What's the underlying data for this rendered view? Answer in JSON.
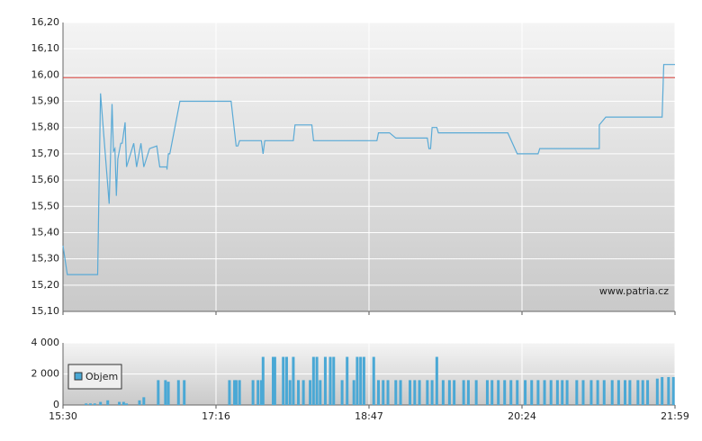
{
  "chart_data": [
    {
      "type": "line",
      "color": "#5aaad6",
      "grid": true,
      "ylim": [
        15.1,
        16.2
      ],
      "yticks": [
        {
          "value": 15.1,
          "label": "15,10"
        },
        {
          "value": 15.2,
          "label": "15,20"
        },
        {
          "value": 15.3,
          "label": "15,30"
        },
        {
          "value": 15.4,
          "label": "15,40"
        },
        {
          "value": 15.5,
          "label": "15,50"
        },
        {
          "value": 15.6,
          "label": "15,60"
        },
        {
          "value": 15.7,
          "label": "15,70"
        },
        {
          "value": 15.8,
          "label": "15,80"
        },
        {
          "value": 15.9,
          "label": "15,90"
        },
        {
          "value": 16.0,
          "label": "16,00"
        },
        {
          "value": 16.1,
          "label": "16,10"
        },
        {
          "value": 16.2,
          "label": "16,20"
        }
      ],
      "reference_line": {
        "value": 15.99,
        "color": "#d9403a"
      },
      "watermark": "www.patria.cz",
      "x": [
        "15:30",
        "15:33",
        "15:54",
        "15:56",
        "16:02",
        "16:04",
        "16:05",
        "16:06",
        "16:07",
        "16:07",
        "16:08",
        "16:10",
        "16:11",
        "16:13",
        "16:14",
        "16:19",
        "16:21",
        "16:24",
        "16:26",
        "16:30",
        "16:35",
        "16:37",
        "16:42",
        "16:42",
        "16:43",
        "16:44",
        "16:51",
        "17:25",
        "17:28",
        "17:29",
        "17:30",
        "17:43",
        "17:44",
        "17:45",
        "18:02",
        "18:03",
        "18:13",
        "18:14",
        "18:52",
        "18:53",
        "19:00",
        "19:04",
        "19:24",
        "19:25",
        "19:26",
        "19:27",
        "19:30",
        "19:31",
        "19:44",
        "20:15",
        "20:21",
        "20:34",
        "20:35",
        "21:12",
        "21:12",
        "21:16",
        "21:51",
        "21:52",
        "21:59"
      ],
      "values": [
        15.35,
        15.24,
        15.24,
        15.93,
        15.51,
        15.89,
        15.71,
        15.72,
        15.54,
        15.54,
        15.68,
        15.74,
        15.74,
        15.82,
        15.65,
        15.74,
        15.65,
        15.74,
        15.65,
        15.72,
        15.73,
        15.65,
        15.65,
        15.64,
        15.7,
        15.7,
        15.9,
        15.9,
        15.73,
        15.73,
        15.75,
        15.75,
        15.7,
        15.75,
        15.75,
        15.81,
        15.81,
        15.75,
        15.75,
        15.78,
        15.78,
        15.76,
        15.76,
        15.72,
        15.72,
        15.8,
        15.8,
        15.78,
        15.78,
        15.78,
        15.7,
        15.7,
        15.72,
        15.72,
        15.81,
        15.84,
        15.84,
        16.04,
        16.04
      ]
    },
    {
      "type": "bar",
      "grid": true,
      "legend": "lower left",
      "ylim": [
        0,
        4000
      ],
      "yticks": [
        0,
        {
          "value": 2000,
          "label": "2 000"
        },
        {
          "value": 4000,
          "label": "4 000"
        }
      ],
      "xticks": [
        "15:30",
        "17:16",
        "18:47",
        "20:24",
        "21:59"
      ],
      "x": [
        "15:46",
        "15:49",
        "15:52",
        "15:56",
        "16:01",
        "16:09",
        "16:12",
        "16:14",
        "16:23",
        "16:26",
        "16:36",
        "16:41",
        "16:43",
        "16:50",
        "16:54",
        "17:24",
        "17:27",
        "17:28",
        "17:30",
        "17:38",
        "17:41",
        "17:43",
        "17:44",
        "17:50",
        "17:51",
        "17:56",
        "17:58",
        "18:00",
        "18:02",
        "18:05",
        "18:08",
        "18:12",
        "18:14",
        "18:16",
        "18:18",
        "18:21",
        "18:24",
        "18:26",
        "18:31",
        "18:34",
        "18:38",
        "18:40",
        "18:42",
        "18:44",
        "18:50",
        "18:53",
        "18:56",
        "18:59",
        "19:04",
        "19:07",
        "19:13",
        "19:16",
        "19:19",
        "19:24",
        "19:27",
        "19:30",
        "19:34",
        "19:38",
        "19:41",
        "19:47",
        "19:50",
        "19:55",
        "20:02",
        "20:05",
        "20:09",
        "20:13",
        "20:17",
        "20:21",
        "20:26",
        "20:30",
        "20:34",
        "20:38",
        "20:42",
        "20:46",
        "20:49",
        "20:52",
        "20:58",
        "21:02",
        "21:07",
        "21:11",
        "21:15",
        "21:20",
        "21:24",
        "21:28",
        "21:31",
        "21:36",
        "21:39",
        "21:42",
        "21:48",
        "21:51",
        "21:55",
        "21:58"
      ],
      "series": [
        {
          "name": "Objem",
          "color": "#4aa8d5",
          "values": [
            100,
            100,
            100,
            200,
            300,
            200,
            200,
            100,
            300,
            500,
            1600,
            1600,
            1500,
            1600,
            1600,
            1600,
            1600,
            1600,
            1600,
            1600,
            1600,
            1600,
            3100,
            3100,
            3100,
            3100,
            3100,
            1600,
            3100,
            1600,
            1600,
            1600,
            3100,
            3100,
            1600,
            3100,
            3100,
            3100,
            1600,
            3100,
            1600,
            3100,
            3100,
            3100,
            3100,
            1600,
            1600,
            1600,
            1600,
            1600,
            1600,
            1600,
            1600,
            1600,
            1600,
            3100,
            1600,
            1600,
            1600,
            1600,
            1600,
            1600,
            1600,
            1600,
            1600,
            1600,
            1600,
            1600,
            1600,
            1600,
            1600,
            1600,
            1600,
            1600,
            1600,
            1600,
            1600,
            1600,
            1600,
            1600,
            1600,
            1600,
            1600,
            1600,
            1600,
            1600,
            1600,
            1600,
            1700,
            1800,
            1800,
            1800
          ]
        }
      ]
    }
  ]
}
